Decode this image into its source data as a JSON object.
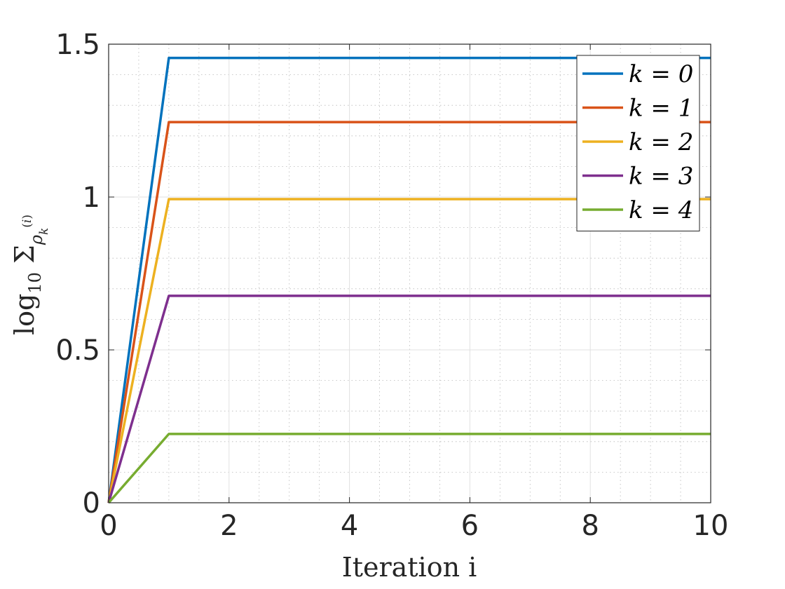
{
  "chart_data": {
    "type": "line",
    "title": "",
    "xlabel": "Iteration i",
    "ylabel": "log10 Σ ρk(i)",
    "xlim": [
      0,
      10
    ],
    "ylim": [
      0,
      1.5
    ],
    "x_ticks": [
      "0",
      "2",
      "4",
      "6",
      "8",
      "10"
    ],
    "y_ticks": [
      "0",
      "0.5",
      "1",
      "1.5"
    ],
    "grid": true,
    "minor_grid": true,
    "legend_position": "top-right",
    "x": [
      0,
      1,
      2,
      3,
      4,
      5,
      6,
      7,
      8,
      9,
      10
    ],
    "series": [
      {
        "name": "k = 0",
        "color": "#0072BD",
        "values": [
          0,
          1.455,
          1.455,
          1.455,
          1.455,
          1.455,
          1.455,
          1.455,
          1.455,
          1.455,
          1.455
        ]
      },
      {
        "name": "k = 1",
        "color": "#D95319",
        "values": [
          0,
          1.245,
          1.245,
          1.245,
          1.245,
          1.245,
          1.245,
          1.245,
          1.245,
          1.245,
          1.245
        ]
      },
      {
        "name": "k = 2",
        "color": "#EDB120",
        "values": [
          0,
          0.993,
          0.993,
          0.993,
          0.993,
          0.993,
          0.993,
          0.993,
          0.993,
          0.993,
          0.993
        ]
      },
      {
        "name": "k = 3",
        "color": "#7E2F8E",
        "values": [
          0,
          0.677,
          0.677,
          0.677,
          0.677,
          0.677,
          0.677,
          0.677,
          0.677,
          0.677,
          0.677
        ]
      },
      {
        "name": "k = 4",
        "color": "#77AC30",
        "values": [
          0,
          0.225,
          0.225,
          0.225,
          0.225,
          0.225,
          0.225,
          0.225,
          0.225,
          0.225,
          0.225
        ]
      }
    ]
  }
}
